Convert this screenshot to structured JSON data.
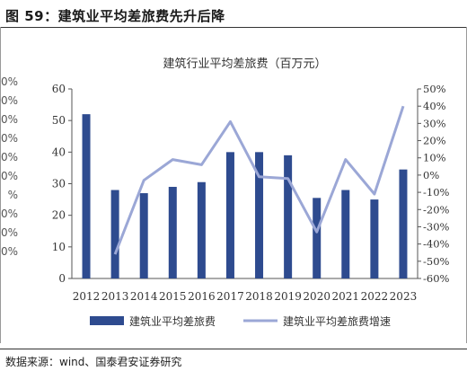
{
  "header": {
    "figure_title": "图 59：建筑业平均差旅费先升后降"
  },
  "footer": {
    "source": "数据来源：wind、国泰君安证券研究"
  },
  "left_fragment": {
    "labels": [
      "20%",
      "00%",
      "0%",
      "0%",
      "0%",
      "0%",
      "%",
      "0%",
      "0%",
      "0%"
    ]
  },
  "colors": {
    "bar": "#2E4B8F",
    "line": "#9BA7D6"
  },
  "chart_data": {
    "type": "bar+line",
    "title": "建筑行业平均差旅费（百万元）",
    "categories": [
      "2012",
      "2013",
      "2014",
      "2015",
      "2016",
      "2017",
      "2018",
      "2019",
      "2020",
      "2021",
      "2022",
      "2023"
    ],
    "series": [
      {
        "name": "建筑业平均差旅费",
        "type": "bar",
        "axis": "left",
        "values": [
          52,
          28,
          27,
          29,
          30.5,
          40,
          40,
          39,
          25.5,
          28,
          25,
          34.5
        ]
      },
      {
        "name": "建筑业平均差旅费增速",
        "type": "line",
        "axis": "right",
        "values": [
          null,
          -46,
          -3,
          9,
          6,
          31,
          -1,
          -2,
          -33,
          9,
          -11,
          40
        ]
      }
    ],
    "y_left": {
      "ylim": [
        0,
        60
      ],
      "ticks": [
        "0",
        "10",
        "20",
        "30",
        "40",
        "50",
        "60"
      ]
    },
    "y_right": {
      "ylim": [
        -60,
        50
      ],
      "ticks": [
        "-60%",
        "-50%",
        "-40%",
        "-30%",
        "-20%",
        "-10%",
        "0%",
        "10%",
        "20%",
        "30%",
        "40%",
        "50%"
      ]
    },
    "legend_position": "bottom",
    "grid": false
  }
}
